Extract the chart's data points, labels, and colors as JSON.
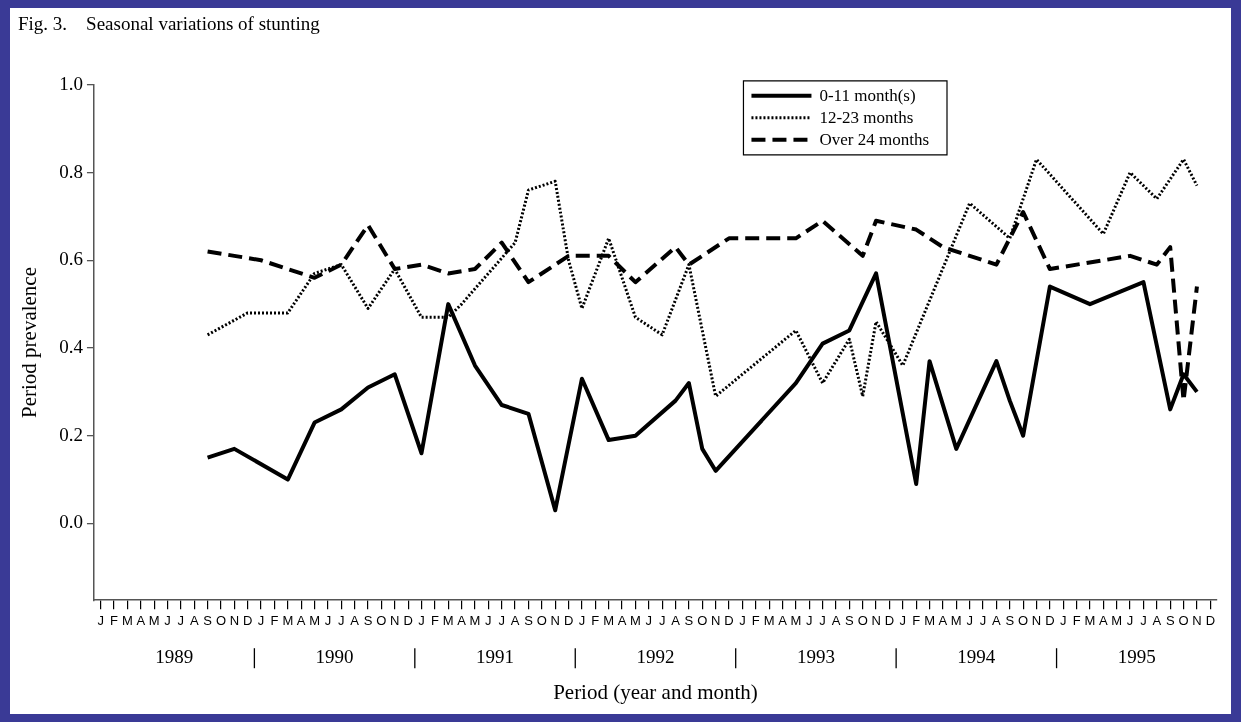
{
  "chart_data": {
    "type": "line",
    "title": "Fig. 3.    Seasonal variations of stunting",
    "xlabel": "Period (year and month)",
    "ylabel": "Period prevalence",
    "categories": [
      "J",
      "F",
      "M",
      "A",
      "M",
      "J",
      "J",
      "A",
      "S",
      "O",
      "N",
      "D",
      "J",
      "F",
      "M",
      "A",
      "M",
      "J",
      "J",
      "A",
      "S",
      "O",
      "N",
      "D",
      "J",
      "F",
      "M",
      "A",
      "M",
      "J",
      "J",
      "A",
      "S",
      "O",
      "N",
      "D",
      "J",
      "F",
      "M",
      "A",
      "M",
      "J",
      "J",
      "A",
      "S",
      "O",
      "N",
      "D",
      "J",
      "F",
      "M",
      "A",
      "M",
      "J",
      "J",
      "A",
      "S",
      "O",
      "N",
      "D",
      "J",
      "F",
      "M",
      "A",
      "M",
      "J",
      "J",
      "A",
      "S",
      "O",
      "N",
      "D",
      "J",
      "F",
      "M",
      "A",
      "M",
      "J",
      "J",
      "A",
      "S",
      "O",
      "N",
      "D"
    ],
    "annotations": [
      "1989",
      "1990",
      "1991",
      "1992",
      "1993",
      "1994",
      "1995"
    ],
    "ylim": [
      -0.175,
      1.0
    ],
    "yticks": [
      {
        "value": 0,
        "label": "0.0"
      },
      {
        "value": 0.2,
        "label": "0.2"
      },
      {
        "value": 0.4,
        "label": "0.4"
      },
      {
        "value": 0.6,
        "label": "0.6"
      },
      {
        "value": 0.8,
        "label": "0.8"
      },
      {
        "value": 1,
        "label": "1.0"
      }
    ],
    "legend": "top right",
    "grid": false,
    "marker": "none",
    "series": [
      {
        "name": "0-11 month(s)",
        "color": "#000000",
        "line_style": "solid",
        "values": [
          null,
          null,
          null,
          null,
          null,
          null,
          null,
          null,
          0.15,
          null,
          0.17,
          null,
          null,
          null,
          0.1,
          null,
          0.23,
          null,
          0.26,
          null,
          0.31,
          null,
          0.34,
          null,
          0.16,
          null,
          0.5,
          null,
          0.36,
          null,
          0.27,
          null,
          0.25,
          null,
          0.03,
          null,
          0.33,
          null,
          0.19,
          null,
          0.2,
          null,
          null,
          0.28,
          0.32,
          0.17,
          0.12,
          null,
          null,
          null,
          null,
          null,
          0.32,
          null,
          0.41,
          null,
          0.44,
          null,
          0.57,
          null,
          null,
          0.09,
          0.37,
          null,
          0.17,
          null,
          null,
          0.37,
          0.28,
          0.2,
          null,
          0.54,
          null,
          null,
          0.5,
          null,
          null,
          null,
          0.55,
          null,
          0.26,
          0.34,
          0.3,
          null
        ]
      },
      {
        "name": "12-23 months",
        "color": "#000000",
        "line_style": "dotted",
        "values": [
          null,
          null,
          null,
          null,
          null,
          null,
          null,
          null,
          0.43,
          null,
          null,
          0.48,
          null,
          null,
          0.48,
          null,
          0.57,
          null,
          0.59,
          null,
          0.49,
          null,
          0.58,
          null,
          0.47,
          null,
          0.47,
          0.5,
          null,
          null,
          null,
          0.64,
          0.76,
          null,
          0.78,
          0.6,
          0.49,
          null,
          0.65,
          null,
          0.47,
          null,
          0.43,
          null,
          0.59,
          null,
          0.29,
          null,
          null,
          null,
          null,
          null,
          0.44,
          null,
          0.32,
          null,
          0.42,
          0.29,
          0.46,
          null,
          0.36,
          null,
          null,
          null,
          null,
          0.73,
          null,
          null,
          0.65,
          null,
          0.83,
          null,
          null,
          null,
          null,
          0.66,
          null,
          0.8,
          null,
          0.74,
          null,
          0.83,
          0.77,
          null
        ]
      },
      {
        "name": "Over 24 months",
        "color": "#000000",
        "line_style": "dashed",
        "values": [
          null,
          null,
          null,
          null,
          null,
          null,
          null,
          null,
          0.62,
          null,
          0.61,
          null,
          0.6,
          null,
          0.58,
          null,
          0.56,
          null,
          0.59,
          null,
          0.68,
          null,
          0.58,
          null,
          0.59,
          null,
          0.57,
          null,
          0.58,
          null,
          0.64,
          null,
          0.55,
          null,
          null,
          0.61,
          null,
          null,
          0.61,
          null,
          0.55,
          null,
          null,
          0.63,
          0.59,
          null,
          null,
          0.65,
          null,
          null,
          null,
          null,
          0.65,
          null,
          0.69,
          null,
          null,
          0.61,
          0.69,
          null,
          null,
          0.67,
          null,
          0.63,
          null,
          null,
          null,
          0.59,
          null,
          0.71,
          null,
          0.58,
          null,
          null,
          null,
          null,
          null,
          0.61,
          null,
          0.59,
          0.63,
          0.28,
          0.54,
          null
        ]
      }
    ]
  }
}
